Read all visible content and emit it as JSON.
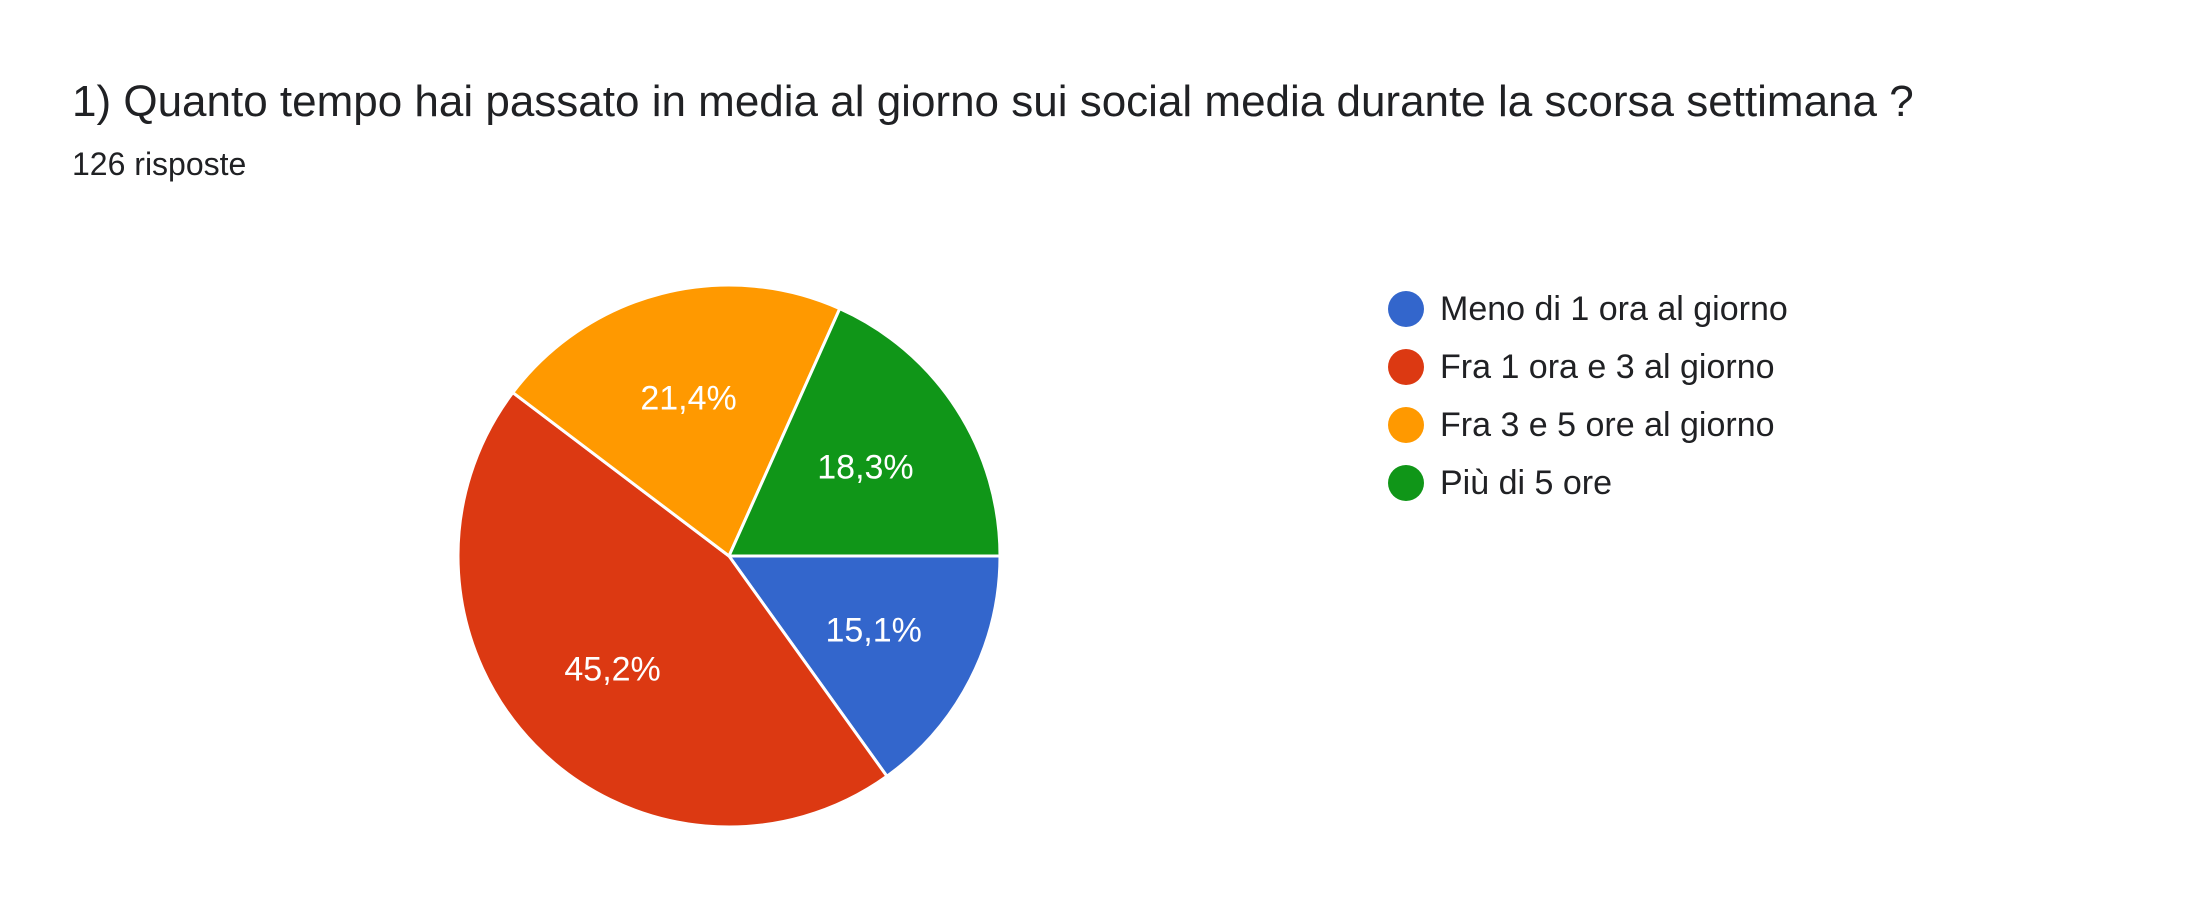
{
  "header": {
    "title": "1) Quanto tempo hai passato in media al giorno sui social media durante la scorsa settimana ?",
    "responses": "126 risposte"
  },
  "chart_data": {
    "type": "pie",
    "title": "1) Quanto tempo hai passato in media al giorno sui social media durante la scorsa settimana ?",
    "total_responses": 126,
    "legend_position": "right",
    "slices": [
      {
        "label": "Meno di 1 ora al giorno",
        "value": 15.1,
        "display": "15,1%",
        "color": "#3366cc"
      },
      {
        "label": "Fra 1 ora e 3 al giorno",
        "value": 45.2,
        "display": "45,2%",
        "color": "#dc3912"
      },
      {
        "label": "Fra 3 e 5 ore al giorno",
        "value": 21.4,
        "display": "21,4%",
        "color": "#ff9900"
      },
      {
        "label": "Più di 5 ore",
        "value": 18.3,
        "display": "18,3%",
        "color": "#109618"
      }
    ]
  }
}
